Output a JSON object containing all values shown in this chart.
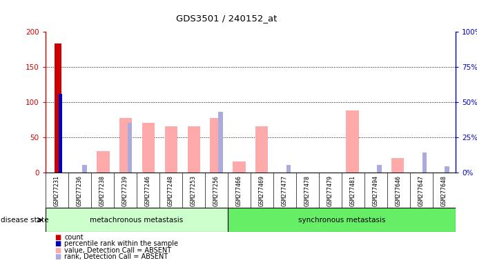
{
  "title": "GDS3501 / 240152_at",
  "samples": [
    "GSM277231",
    "GSM277236",
    "GSM277238",
    "GSM277239",
    "GSM277246",
    "GSM277248",
    "GSM277253",
    "GSM277256",
    "GSM277466",
    "GSM277469",
    "GSM277477",
    "GSM277478",
    "GSM277479",
    "GSM277481",
    "GSM277494",
    "GSM277646",
    "GSM277647",
    "GSM277648"
  ],
  "count_values": [
    183,
    0,
    0,
    0,
    0,
    0,
    0,
    0,
    0,
    0,
    0,
    0,
    0,
    0,
    0,
    0,
    0,
    0
  ],
  "percentile_rank": [
    56,
    0,
    0,
    0,
    0,
    0,
    0,
    0,
    0,
    0,
    0,
    0,
    0,
    0,
    0,
    0,
    0,
    0
  ],
  "absent_value": [
    0,
    0,
    30,
    77,
    70,
    65,
    65,
    77,
    15,
    65,
    0,
    0,
    0,
    88,
    0,
    20,
    0,
    0
  ],
  "absent_rank_pct": [
    0,
    5,
    0,
    35,
    0,
    0,
    0,
    43,
    0,
    0,
    5,
    0,
    0,
    0,
    5,
    0,
    14,
    4
  ],
  "metachronous_count": 8,
  "synchronous_count": 10,
  "group1_label": "metachronous metastasis",
  "group2_label": "synchronous metastasis",
  "ylim_left": [
    0,
    200
  ],
  "ylim_right": [
    0,
    100
  ],
  "yticks_left": [
    0,
    50,
    100,
    150,
    200
  ],
  "ytick_labels_left": [
    "0",
    "50",
    "100",
    "150",
    "200"
  ],
  "yticks_right_pct": [
    0,
    25,
    50,
    75,
    100
  ],
  "ytick_labels_right": [
    "0%",
    "25%",
    "50%",
    "75%",
    "100%"
  ],
  "color_count": "#cc0000",
  "color_percentile": "#0000bb",
  "color_absent_value": "#ffaaaa",
  "color_absent_rank": "#aaaadd",
  "color_group1_bg": "#ccffcc",
  "color_group2_bg": "#66ee66",
  "color_sample_bg": "#dddddd",
  "fig_bg": "#ffffff"
}
